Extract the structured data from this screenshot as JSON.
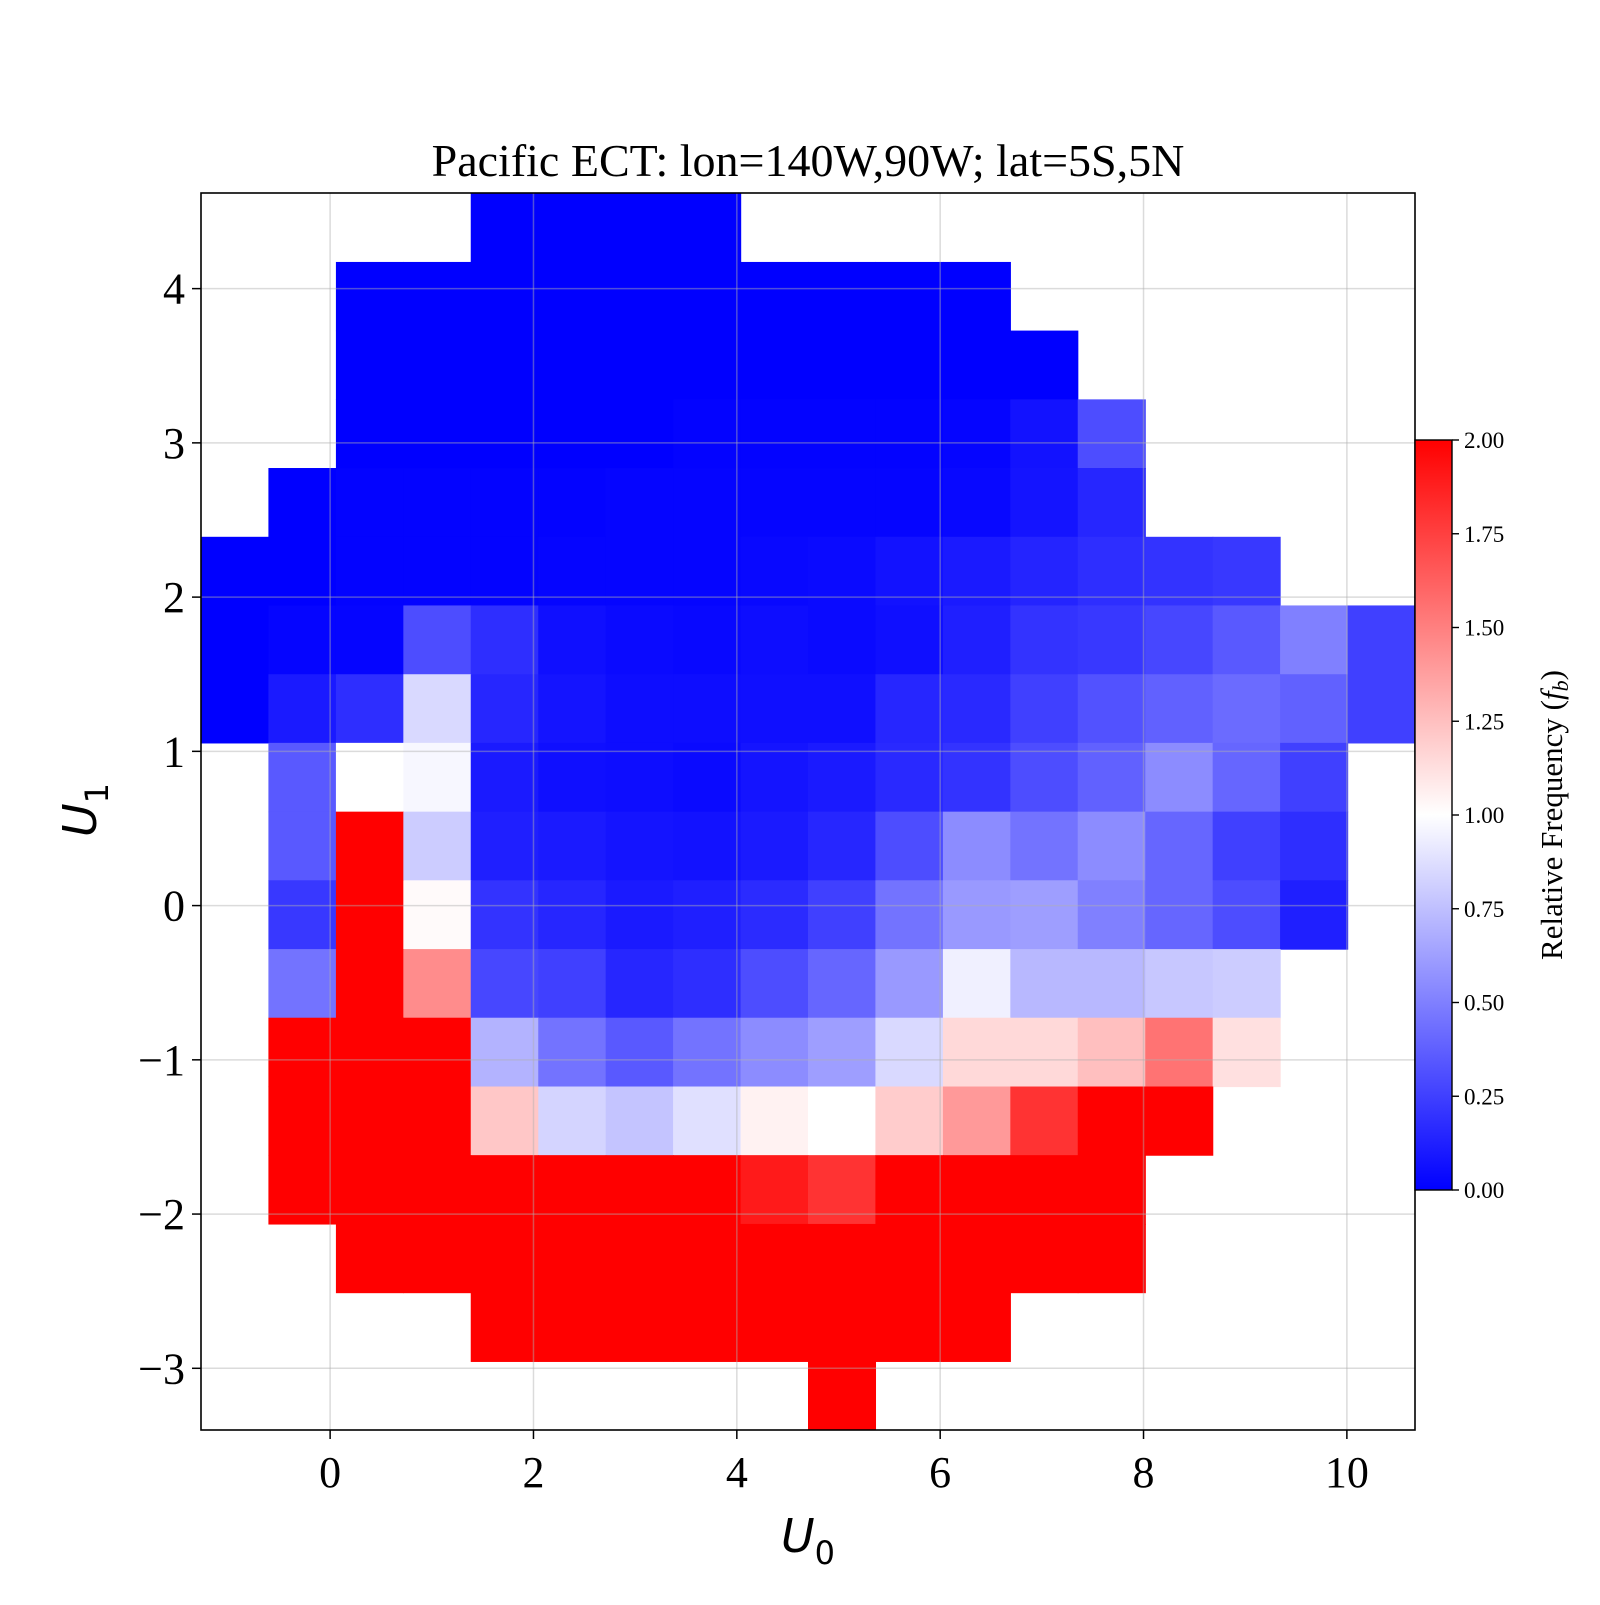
{
  "chart_data": {
    "type": "heatmap",
    "title": "Pacific ECT: lon=140W,90W; lat=5S,5N",
    "xlabel": "U",
    "xlabel_sub": "0",
    "ylabel": "U",
    "ylabel_sub": "1",
    "xlim": [
      -1.27,
      10.67
    ],
    "ylim": [
      -3.4,
      4.62
    ],
    "x_ticks": [
      0,
      2,
      4,
      6,
      8,
      10
    ],
    "x_tick_labels": [
      "0",
      "2",
      "4",
      "6",
      "8",
      "10"
    ],
    "y_ticks": [
      4,
      3,
      2,
      1,
      0,
      -1,
      -2,
      -3
    ],
    "y_tick_labels": [
      "4",
      "3",
      "2",
      "1",
      "0",
      "−1",
      "−2",
      "−3"
    ],
    "grid": true,
    "x_bin_edges": [
      -1.27,
      -0.607,
      0.057,
      0.72,
      1.383,
      2.047,
      2.71,
      3.373,
      4.037,
      4.7,
      5.363,
      6.027,
      6.69,
      7.353,
      8.017,
      8.68,
      9.343,
      10.007,
      10.67
    ],
    "y_bin_edges": [
      -3.4,
      -2.955,
      -2.509,
      -2.064,
      -1.618,
      -1.173,
      -0.727,
      -0.282,
      0.164,
      0.609,
      1.055,
      1.5,
      1.946,
      2.391,
      2.837,
      3.282,
      3.728,
      4.173,
      4.62
    ],
    "values_note": "rows from top (highest U1) to bottom; null = no data",
    "values": [
      [
        null,
        null,
        null,
        null,
        0.0,
        0.0,
        0.0,
        0.0,
        null,
        null,
        null,
        null,
        null,
        null,
        null,
        null,
        null,
        null
      ],
      [
        null,
        null,
        0.0,
        0.0,
        0.0,
        0.0,
        0.0,
        0.0,
        0.0,
        0.0,
        0.0,
        0.0,
        null,
        null,
        null,
        null,
        null,
        null
      ],
      [
        null,
        null,
        0.0,
        0.0,
        0.0,
        0.0,
        0.0,
        0.0,
        0.0,
        0.0,
        0.0,
        0.0,
        0.0,
        null,
        null,
        null,
        null,
        null
      ],
      [
        null,
        null,
        0.0,
        0.0,
        0.0,
        0.0,
        0.0,
        0.01,
        0.01,
        0.01,
        0.01,
        0.02,
        0.07,
        0.3,
        null,
        null,
        null,
        null
      ],
      [
        null,
        0.0,
        0.01,
        0.01,
        0.01,
        0.01,
        0.02,
        0.02,
        0.02,
        0.02,
        0.02,
        0.03,
        0.08,
        0.15,
        null,
        null,
        null,
        null
      ],
      [
        0.0,
        0.0,
        0.01,
        0.01,
        0.01,
        0.02,
        0.02,
        0.02,
        0.03,
        0.04,
        0.07,
        0.1,
        0.14,
        0.18,
        0.2,
        0.22,
        null,
        null
      ],
      [
        0.0,
        0.02,
        0.02,
        0.3,
        0.18,
        0.06,
        0.04,
        0.03,
        0.05,
        0.04,
        0.06,
        0.12,
        0.2,
        0.22,
        0.28,
        0.35,
        0.5,
        0.25
      ],
      [
        0.0,
        0.1,
        0.18,
        0.85,
        0.15,
        0.08,
        0.05,
        0.05,
        0.06,
        0.06,
        0.15,
        0.16,
        0.25,
        0.32,
        0.38,
        0.42,
        0.38,
        0.25
      ],
      [
        null,
        0.35,
        1.0,
        0.97,
        0.1,
        0.06,
        0.05,
        0.04,
        0.08,
        0.1,
        0.16,
        0.2,
        0.3,
        0.38,
        0.55,
        0.4,
        0.25,
        null
      ],
      [
        null,
        0.35,
        2.0,
        0.8,
        0.12,
        0.1,
        0.08,
        0.07,
        0.1,
        0.15,
        0.3,
        0.55,
        0.45,
        0.55,
        0.4,
        0.25,
        0.18,
        null
      ],
      [
        null,
        0.22,
        2.0,
        1.02,
        0.2,
        0.15,
        0.1,
        0.12,
        0.17,
        0.25,
        0.45,
        0.6,
        0.62,
        0.5,
        0.4,
        0.3,
        0.12,
        null
      ],
      [
        null,
        0.45,
        2.0,
        1.45,
        0.28,
        0.25,
        0.15,
        0.18,
        0.3,
        0.4,
        0.6,
        0.94,
        0.72,
        0.72,
        0.78,
        0.8,
        null,
        null
      ],
      [
        null,
        2.0,
        2.0,
        2.0,
        0.7,
        0.45,
        0.35,
        0.45,
        0.55,
        0.62,
        0.85,
        1.15,
        1.15,
        1.25,
        1.55,
        1.12,
        null,
        null
      ],
      [
        null,
        2.0,
        2.0,
        2.0,
        1.22,
        0.83,
        0.77,
        0.88,
        1.05,
        1.0,
        1.2,
        1.4,
        1.8,
        2.0,
        2.0,
        null,
        null,
        null
      ],
      [
        null,
        2.0,
        2.0,
        2.0,
        2.0,
        2.0,
        2.0,
        2.0,
        1.9,
        1.8,
        2.0,
        2.0,
        2.0,
        2.0,
        null,
        null,
        null,
        null
      ],
      [
        null,
        null,
        2.0,
        2.0,
        2.0,
        2.0,
        2.0,
        2.0,
        2.0,
        2.0,
        2.0,
        2.0,
        2.0,
        2.0,
        null,
        null,
        null,
        null
      ],
      [
        null,
        null,
        null,
        null,
        2.0,
        2.0,
        2.0,
        2.0,
        2.0,
        2.0,
        2.0,
        2.0,
        null,
        null,
        null,
        null,
        null,
        null
      ],
      [
        null,
        null,
        null,
        null,
        null,
        null,
        null,
        null,
        null,
        2.0,
        null,
        null,
        null,
        null,
        null,
        null,
        null,
        null
      ]
    ],
    "colorbar": {
      "label": "Relative Frequency (",
      "label_var": "f",
      "label_sub": "b",
      "label_close": ")",
      "min": 0.0,
      "max": 2.0,
      "colormap": "bwr",
      "ticks": [
        0.0,
        0.25,
        0.5,
        0.75,
        1.0,
        1.25,
        1.5,
        1.75,
        2.0
      ],
      "tick_labels": [
        "0.00",
        "0.25",
        "0.50",
        "0.75",
        "1.00",
        "1.25",
        "1.50",
        "1.75",
        "2.00"
      ]
    },
    "colors": {
      "low": "#0000ff",
      "mid": "#ffffff",
      "high": "#ff0000"
    }
  }
}
